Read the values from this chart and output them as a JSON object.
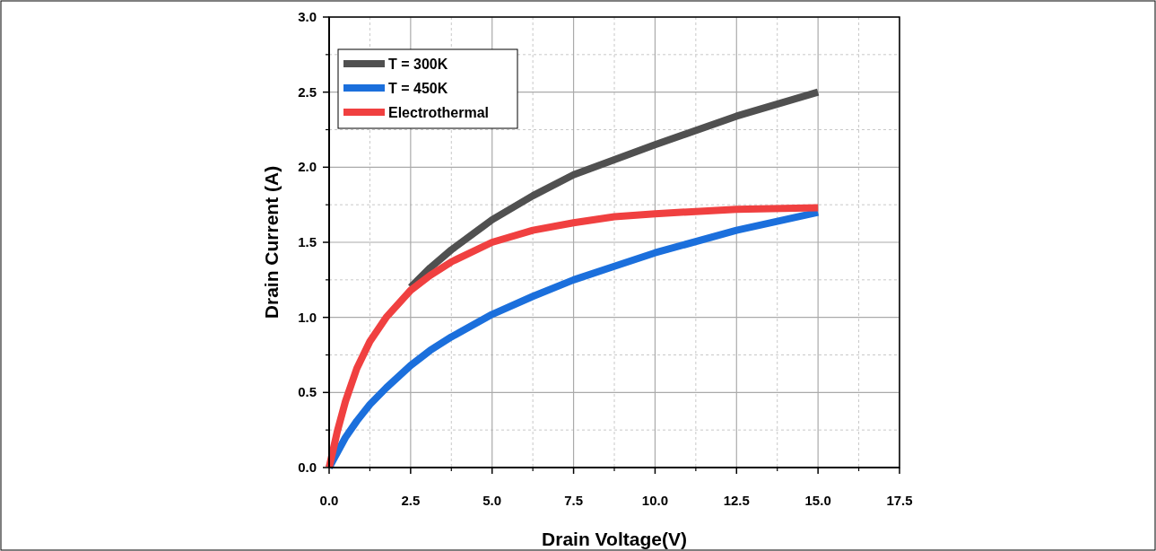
{
  "chart_data": {
    "type": "line",
    "xlabel": "Drain Voltage(V)",
    "ylabel": "Drain Current (A)",
    "xlim": [
      0,
      17.5
    ],
    "xticks": [
      {
        "value": 0,
        "label": "0.0"
      },
      {
        "value": 2.5,
        "label": "2.5"
      },
      {
        "value": 5,
        "label": "5.0"
      },
      {
        "value": 7.5,
        "label": "7.5"
      },
      {
        "value": 10,
        "label": "10.0"
      },
      {
        "value": 12.5,
        "label": "12.5"
      },
      {
        "value": 15,
        "label": "15.0"
      },
      {
        "value": 17.5,
        "label": "17.5"
      }
    ],
    "ylim": [
      0,
      3
    ],
    "yticks": [
      {
        "value": 0,
        "label": "0.0"
      },
      {
        "value": 0.5,
        "label": "0.5"
      },
      {
        "value": 1,
        "label": "1.0"
      },
      {
        "value": 1.5,
        "label": "1.5"
      },
      {
        "value": 2,
        "label": "2.0"
      },
      {
        "value": 2.5,
        "label": "2.5"
      },
      {
        "value": 3,
        "label": "3.0"
      }
    ],
    "grid": true,
    "legend": "top left",
    "line_style": "solid",
    "marker": "none",
    "x": [
      0,
      0.25,
      0.5,
      0.85,
      1.25,
      1.75,
      2.5,
      3.1,
      3.75,
      5,
      6.25,
      7.5,
      8.75,
      10,
      12.5,
      15
    ],
    "series": [
      {
        "name": "T = 300K",
        "color": "#505050",
        "values": [
          null,
          null,
          null,
          null,
          null,
          null,
          1.2,
          1.33,
          1.45,
          1.65,
          1.81,
          1.95,
          2.05,
          2.15,
          2.34,
          2.5
        ]
      },
      {
        "name": "T = 450K",
        "color": "#1b6fdc",
        "values": [
          0,
          0.1,
          0.2,
          0.31,
          0.42,
          0.53,
          0.68,
          0.78,
          0.87,
          1.02,
          1.14,
          1.25,
          1.34,
          1.43,
          1.58,
          1.7
        ]
      },
      {
        "name": "Electrothermal",
        "color": "#f04040",
        "values": [
          0,
          0.24,
          0.44,
          0.66,
          0.84,
          1.0,
          1.18,
          1.28,
          1.37,
          1.5,
          1.58,
          1.63,
          1.67,
          1.69,
          1.72,
          1.73
        ]
      }
    ]
  }
}
